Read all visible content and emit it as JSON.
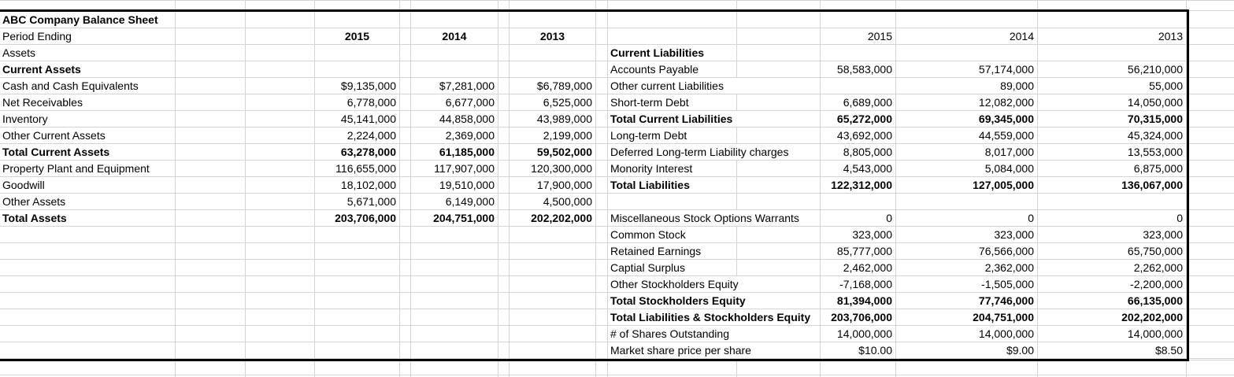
{
  "colors": {
    "background": "#ffffff",
    "gridline": "#d4d4d4",
    "table_border": "#000000",
    "text": "#000000"
  },
  "left_table": {
    "rows": [
      {
        "row": 0,
        "label": "ABC Company Balance Sheet",
        "bold": true
      },
      {
        "row": 1,
        "label": "Period Ending",
        "years": [
          "2015",
          "2014",
          "2013"
        ]
      },
      {
        "row": 2,
        "label": "Assets"
      },
      {
        "row": 3,
        "label": "Current Assets",
        "bold": true
      },
      {
        "row": 4,
        "label": "Cash and Cash Equivalents",
        "values": [
          "$9,135,000",
          "$7,281,000",
          "$6,789,000"
        ]
      },
      {
        "row": 5,
        "label": "Net Receivables",
        "values": [
          "6,778,000",
          "6,677,000",
          "6,525,000"
        ]
      },
      {
        "row": 6,
        "label": "Inventory",
        "values": [
          "45,141,000",
          "44,858,000",
          "43,989,000"
        ]
      },
      {
        "row": 7,
        "label": "Other Current Assets",
        "values": [
          "2,224,000",
          "2,369,000",
          "2,199,000"
        ]
      },
      {
        "row": 8,
        "label": "Total Current Assets",
        "bold": true,
        "values": [
          "63,278,000",
          "61,185,000",
          "59,502,000"
        ]
      },
      {
        "row": 9,
        "label": "Property Plant and Equipment",
        "values": [
          "116,655,000",
          "117,907,000",
          "120,300,000"
        ]
      },
      {
        "row": 10,
        "label": "Goodwill",
        "values": [
          "18,102,000",
          "19,510,000",
          "17,900,000"
        ]
      },
      {
        "row": 11,
        "label": "Other Assets",
        "values": [
          "5,671,000",
          "6,149,000",
          "4,500,000"
        ]
      },
      {
        "row": 12,
        "label": "Total Assets",
        "bold": true,
        "values": [
          "203,706,000",
          "204,751,000",
          "202,202,000"
        ]
      }
    ]
  },
  "right_table": {
    "rows": [
      {
        "row": 1,
        "years": [
          "2015",
          "2014",
          "2013"
        ]
      },
      {
        "row": 2,
        "label": "Current Liabilities",
        "bold": true
      },
      {
        "row": 3,
        "label": "Accounts Payable",
        "values": [
          "58,583,000",
          "57,174,000",
          "56,210,000"
        ]
      },
      {
        "row": 4,
        "label": "Other current Liabilities",
        "values": [
          "",
          "89,000",
          "55,000"
        ]
      },
      {
        "row": 5,
        "label": "Short-term Debt",
        "values": [
          "6,689,000",
          "12,082,000",
          "14,050,000"
        ]
      },
      {
        "row": 6,
        "label": "Total Current Liabilities",
        "bold": true,
        "values": [
          "65,272,000",
          "69,345,000",
          "70,315,000"
        ]
      },
      {
        "row": 7,
        "label": "Long-term Debt",
        "values": [
          "43,692,000",
          "44,559,000",
          "45,324,000"
        ]
      },
      {
        "row": 8,
        "label": "Deferred Long-term Liability charges",
        "values": [
          "8,805,000",
          "8,017,000",
          "13,553,000"
        ]
      },
      {
        "row": 9,
        "label": "Monority Interest",
        "values": [
          "4,543,000",
          "5,084,000",
          "6,875,000"
        ]
      },
      {
        "row": 10,
        "label": "Total Liabilities",
        "bold": true,
        "values": [
          "122,312,000",
          "127,005,000",
          "136,067,000"
        ]
      },
      {
        "row": 12,
        "label": "Miscellaneous Stock Options Warrants",
        "values": [
          "0",
          "0",
          "0"
        ]
      },
      {
        "row": 13,
        "label": "Common Stock",
        "values": [
          "323,000",
          "323,000",
          "323,000"
        ]
      },
      {
        "row": 14,
        "label": "Retained Earnings",
        "values": [
          "85,777,000",
          "76,566,000",
          "65,750,000"
        ]
      },
      {
        "row": 15,
        "label": "Captial Surplus",
        "values": [
          "2,462,000",
          "2,362,000",
          "2,262,000"
        ]
      },
      {
        "row": 16,
        "label": "Other Stockholders Equity",
        "values": [
          "-7,168,000",
          "-1,505,000",
          "-2,200,000"
        ]
      },
      {
        "row": 17,
        "label": "Total Stockholders Equity",
        "bold": true,
        "values": [
          "81,394,000",
          "77,746,000",
          "66,135,000"
        ]
      },
      {
        "row": 18,
        "label": "Total Liabilities & Stockholders Equity",
        "bold": true,
        "values": [
          "203,706,000",
          "204,751,000",
          "202,202,000"
        ]
      },
      {
        "row": 19,
        "label": "# of Shares Outstanding",
        "values": [
          "14,000,000",
          "14,000,000",
          "14,000,000"
        ]
      },
      {
        "row": 20,
        "label": "Market share price per share",
        "values": [
          "$10.00",
          "$9.00",
          "$8.50"
        ]
      }
    ]
  }
}
